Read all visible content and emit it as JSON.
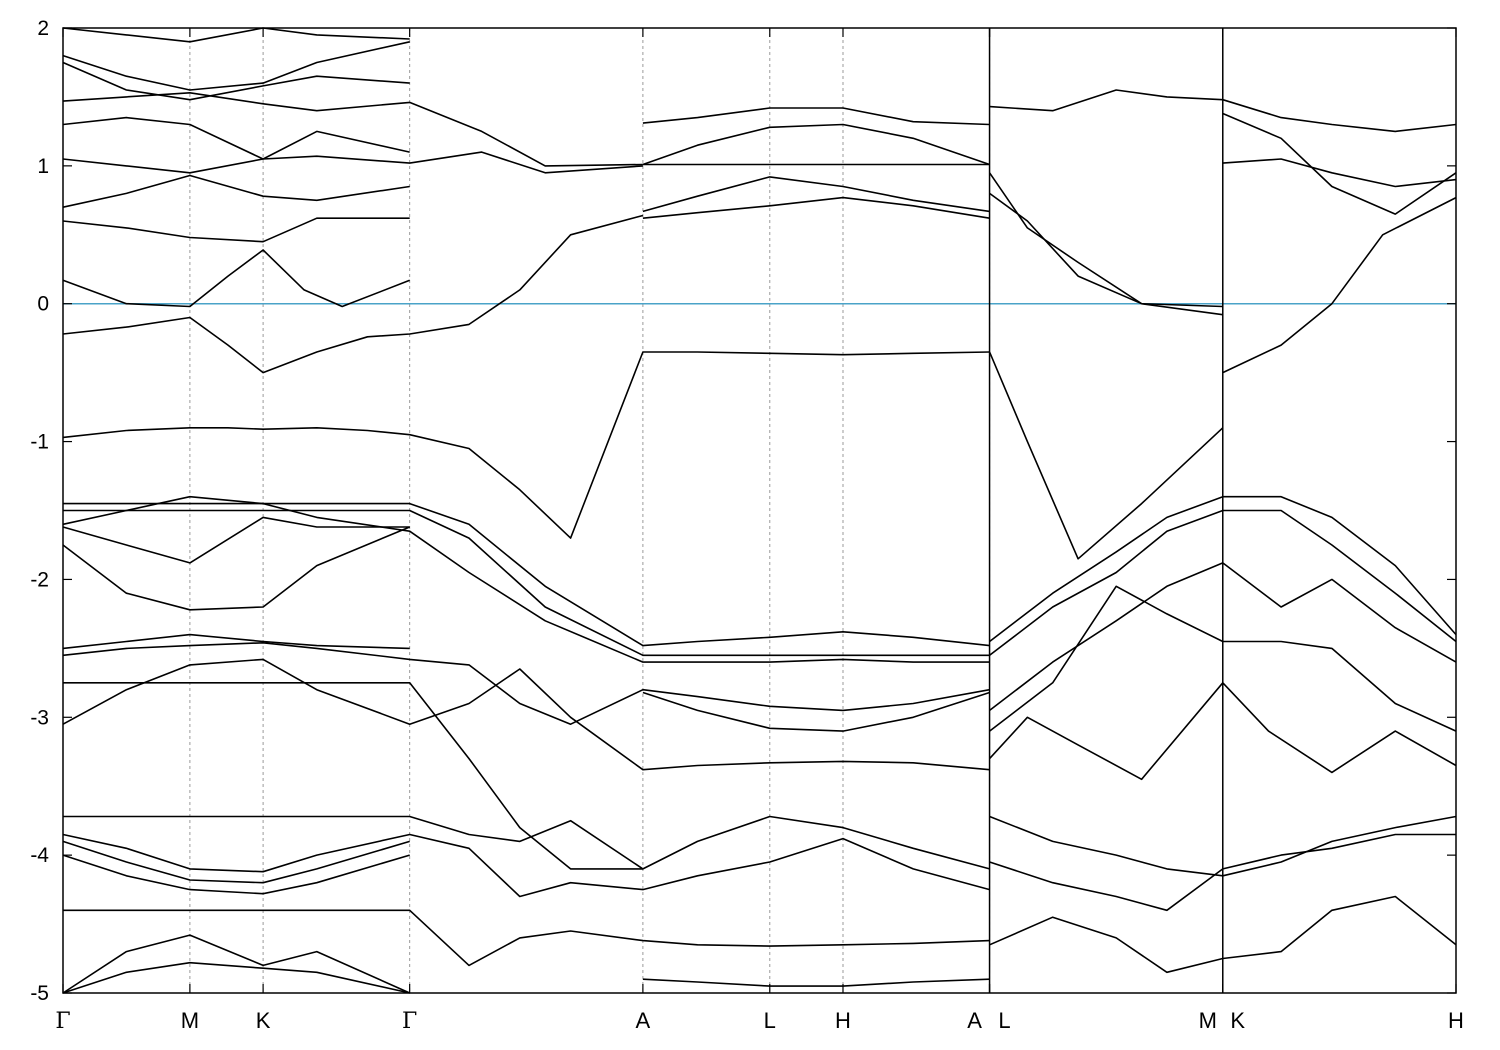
{
  "chart_data": {
    "type": "line",
    "title": "",
    "xlabel": "",
    "ylabel": "",
    "ylim": [
      -5,
      2
    ],
    "yticks": [
      -5,
      -4,
      -3,
      -2,
      -1,
      0,
      1,
      2
    ],
    "grid": "vertical dashed at high-symmetry points",
    "k_points": [
      {
        "label": "Γ",
        "x": 0.0
      },
      {
        "label": "M",
        "x": 1.0
      },
      {
        "label": "K",
        "x": 1.577
      },
      {
        "label": "Γ",
        "x": 2.732
      },
      {
        "label": "A",
        "x": 4.57
      },
      {
        "label": "L",
        "x": 5.57
      },
      {
        "label": "H",
        "x": 6.147
      },
      {
        "label": "A",
        "x": 7.302
      },
      {
        "label": "L",
        "x": 7.302
      },
      {
        "label": "M",
        "x": 9.14
      },
      {
        "label": "K",
        "x": 9.14
      },
      {
        "label": "H",
        "x": 10.978
      }
    ],
    "path_breaks": [
      7.302,
      9.14
    ],
    "fermi_level": {
      "y": 0,
      "color": "#4aa3c8"
    },
    "series": [
      {
        "x": [
          0,
          0.5,
          1.0,
          1.3,
          1.577,
          2.0,
          2.4,
          2.732,
          3.2,
          3.6,
          4.0,
          4.57,
          5.0,
          5.57,
          6.147,
          6.7,
          7.302
        ],
        "values": [
          -0.97,
          -0.92,
          -0.9,
          -0.9,
          -0.91,
          -0.9,
          -0.92,
          -0.95,
          -1.05,
          -1.35,
          -1.7,
          -0.35,
          -0.35,
          -0.36,
          -0.37,
          -0.36,
          -0.35
        ]
      },
      {
        "x": [
          7.302,
          7.6,
          8.0,
          8.5,
          9.14
        ],
        "values": [
          -0.35,
          -1.0,
          -1.85,
          -1.45,
          -0.9
        ]
      },
      {
        "x": [
          9.14,
          9.6,
          10.0,
          10.4,
          10.978
        ],
        "values": [
          -0.5,
          -0.3,
          0.0,
          0.5,
          0.77
        ]
      },
      {
        "x": [
          0,
          0.5,
          1.0,
          1.3,
          1.577,
          2.0,
          2.4,
          2.732,
          3.2,
          3.6,
          4.0,
          4.57
        ],
        "values": [
          -0.22,
          -0.17,
          -0.1,
          -0.3,
          -0.5,
          -0.35,
          -0.24,
          -0.22,
          -0.15,
          0.1,
          0.5,
          0.64
        ]
      },
      {
        "x": [
          0,
          0.5,
          1.0,
          1.3,
          1.577,
          1.9,
          2.2,
          2.732
        ],
        "values": [
          0.17,
          0.0,
          -0.02,
          0.2,
          0.39,
          0.1,
          -0.02,
          0.17
        ]
      },
      {
        "x": [
          4.57,
          5.0,
          5.57,
          6.147,
          6.7,
          7.302
        ],
        "values": [
          0.62,
          0.66,
          0.71,
          0.77,
          0.71,
          0.62
        ]
      },
      {
        "x": [
          4.57,
          5.0,
          5.57,
          6.147,
          6.7,
          7.302
        ],
        "values": [
          0.67,
          0.78,
          0.92,
          0.85,
          0.75,
          0.67
        ]
      },
      {
        "x": [
          7.302,
          7.6,
          8.0,
          8.5,
          9.14
        ],
        "values": [
          0.95,
          0.55,
          0.3,
          0.0,
          -0.08
        ]
      },
      {
        "x": [
          7.302,
          7.6,
          8.0,
          8.5,
          9.14
        ],
        "values": [
          0.8,
          0.6,
          0.2,
          0.0,
          -0.02
        ]
      },
      {
        "x": [
          0,
          0.5,
          1.0,
          1.577,
          2.0,
          2.732,
          3.3,
          3.8,
          4.57
        ],
        "values": [
          1.47,
          1.5,
          1.53,
          1.45,
          1.4,
          1.46,
          1.25,
          1.0,
          1.01
        ]
      },
      {
        "x": [
          0,
          0.5,
          1.0,
          1.577,
          2.0,
          2.732,
          3.3,
          3.8,
          4.57
        ],
        "values": [
          1.05,
          1.0,
          0.95,
          1.05,
          1.07,
          1.02,
          1.1,
          0.95,
          1.0
        ]
      },
      {
        "x": [
          4.57,
          5.0,
          5.57,
          6.147,
          6.7,
          7.302
        ],
        "values": [
          1.01,
          1.01,
          1.01,
          1.01,
          1.01,
          1.01
        ]
      },
      {
        "x": [
          4.57,
          5.0,
          5.57,
          6.147,
          6.7,
          7.302
        ],
        "values": [
          1.31,
          1.35,
          1.42,
          1.42,
          1.32,
          1.3
        ]
      },
      {
        "x": [
          4.57,
          5.0,
          5.57,
          6.147,
          6.7,
          7.302
        ],
        "values": [
          1.01,
          1.15,
          1.28,
          1.3,
          1.2,
          1.01
        ]
      },
      {
        "x": [
          0,
          0.5,
          1.0,
          1.577,
          2.0,
          2.732
        ],
        "values": [
          0.6,
          0.55,
          0.48,
          0.45,
          0.62,
          0.62
        ]
      },
      {
        "x": [
          0,
          0.5,
          1.0,
          1.577,
          2.0,
          2.732
        ],
        "values": [
          0.7,
          0.8,
          0.93,
          0.78,
          0.75,
          0.85
        ]
      },
      {
        "x": [
          7.302,
          7.8,
          8.3,
          8.7,
          9.14,
          9.6,
          10.0,
          10.5,
          10.978
        ],
        "values": [
          1.43,
          1.4,
          1.55,
          1.5,
          1.48,
          1.35,
          1.3,
          1.25,
          1.3
        ]
      },
      {
        "x": [
          9.14,
          9.6,
          10.0,
          10.5,
          10.978
        ],
        "values": [
          1.38,
          1.2,
          0.85,
          0.65,
          0.95
        ]
      },
      {
        "x": [
          9.14,
          9.6,
          10.0,
          10.5,
          10.978
        ],
        "values": [
          1.02,
          1.05,
          0.95,
          0.85,
          0.9
        ]
      },
      {
        "x": [
          0,
          0.5,
          1.0,
          1.577,
          2.0,
          2.732,
          3.2,
          3.8,
          4.57,
          5.0,
          5.57,
          6.147,
          6.7,
          7.302
        ],
        "values": [
          -1.45,
          -1.45,
          -1.45,
          -1.45,
          -1.45,
          -1.45,
          -1.6,
          -2.05,
          -2.48,
          -2.45,
          -2.42,
          -2.38,
          -2.42,
          -2.48
        ]
      },
      {
        "x": [
          0,
          0.5,
          1.0,
          1.577,
          2.0,
          2.732,
          3.2,
          3.8,
          4.57,
          5.0,
          5.57,
          6.147,
          6.7,
          7.302
        ],
        "values": [
          -1.5,
          -1.5,
          -1.5,
          -1.5,
          -1.5,
          -1.5,
          -1.7,
          -2.2,
          -2.55,
          -2.55,
          -2.55,
          -2.55,
          -2.55,
          -2.55
        ]
      },
      {
        "x": [
          0,
          0.5,
          1.0,
          1.577,
          2.0,
          2.732,
          3.2,
          3.8,
          4.57,
          5.0,
          5.57,
          6.147,
          6.7,
          7.302
        ],
        "values": [
          -1.6,
          -1.5,
          -1.4,
          -1.45,
          -1.55,
          -1.65,
          -1.95,
          -2.3,
          -2.6,
          -2.6,
          -2.6,
          -2.58,
          -2.6,
          -2.6
        ]
      },
      {
        "x": [
          0,
          0.5,
          1.0,
          1.577,
          2.0,
          2.732
        ],
        "values": [
          -1.62,
          -1.75,
          -1.88,
          -1.55,
          -1.62,
          -1.62
        ]
      },
      {
        "x": [
          0,
          0.5,
          1.0,
          1.577,
          2.0,
          2.732
        ],
        "values": [
          -1.75,
          -2.1,
          -2.22,
          -2.2,
          -1.9,
          -1.62
        ]
      },
      {
        "x": [
          0,
          0.5,
          1.0,
          1.577,
          2.0,
          2.732
        ],
        "values": [
          -2.5,
          -2.45,
          -2.4,
          -2.45,
          -2.48,
          -2.5
        ]
      },
      {
        "x": [
          0,
          0.5,
          1.0,
          1.577,
          2.0,
          2.732,
          3.2,
          3.6,
          4.0,
          4.57,
          5.0,
          5.57,
          6.147,
          6.7,
          7.302
        ],
        "values": [
          -2.55,
          -2.5,
          -2.48,
          -2.46,
          -2.5,
          -2.58,
          -2.62,
          -2.9,
          -3.05,
          -2.8,
          -2.85,
          -2.92,
          -2.95,
          -2.9,
          -2.8
        ]
      },
      {
        "x": [
          4.57,
          5.0,
          5.57,
          6.147,
          6.7,
          7.302
        ],
        "values": [
          -2.82,
          -2.95,
          -3.08,
          -3.1,
          -3.0,
          -2.82
        ]
      },
      {
        "x": [
          0,
          0.5,
          1.0,
          1.577,
          2.0,
          2.732,
          3.2,
          3.6,
          4.0,
          4.57
        ],
        "values": [
          -2.75,
          -2.75,
          -2.75,
          -2.75,
          -2.75,
          -2.75,
          -3.3,
          -3.8,
          -4.1,
          -4.1
        ]
      },
      {
        "x": [
          0,
          0.5,
          1.0,
          1.577,
          2.0,
          2.732,
          3.2,
          3.6,
          4.0,
          4.57,
          5.0,
          5.57,
          6.147,
          6.7,
          7.302
        ],
        "values": [
          -3.05,
          -2.8,
          -2.62,
          -2.58,
          -2.8,
          -3.05,
          -2.9,
          -2.65,
          -3.0,
          -3.38,
          -3.35,
          -3.33,
          -3.32,
          -3.33,
          -3.38
        ]
      },
      {
        "x": [
          7.302,
          7.8,
          8.3,
          8.7,
          9.14,
          9.6,
          10.0,
          10.5,
          10.978
        ],
        "values": [
          -2.45,
          -2.1,
          -1.8,
          -1.55,
          -1.4,
          -1.4,
          -1.55,
          -1.9,
          -2.4
        ]
      },
      {
        "x": [
          7.302,
          7.8,
          8.3,
          8.7,
          9.14,
          9.6,
          10.0,
          10.5,
          10.978
        ],
        "values": [
          -2.55,
          -2.2,
          -1.95,
          -1.65,
          -1.5,
          -1.5,
          -1.75,
          -2.1,
          -2.45
        ]
      },
      {
        "x": [
          7.302,
          7.8,
          8.3,
          8.7,
          9.14,
          9.6,
          10.0,
          10.5,
          10.978
        ],
        "values": [
          -2.95,
          -2.6,
          -2.3,
          -2.05,
          -1.88,
          -2.2,
          -2.0,
          -2.35,
          -2.6
        ]
      },
      {
        "x": [
          7.302,
          7.8,
          8.3,
          8.7,
          9.14,
          9.6,
          10.0,
          10.5,
          10.978
        ],
        "values": [
          -3.1,
          -2.75,
          -2.05,
          -2.25,
          -2.45,
          -2.45,
          -2.5,
          -2.9,
          -3.1
        ]
      },
      {
        "x": [
          7.302,
          7.6,
          8.0,
          8.5,
          9.14,
          9.5,
          10.0,
          10.5,
          10.978
        ],
        "values": [
          -3.3,
          -3.0,
          -3.2,
          -3.45,
          -2.75,
          -3.1,
          -3.4,
          -3.1,
          -3.35
        ]
      },
      {
        "x": [
          0,
          0.5,
          1.0,
          1.577,
          2.0,
          2.732,
          3.2,
          3.6,
          4.0,
          4.57,
          5.0,
          5.57,
          6.147,
          6.7,
          7.302
        ],
        "values": [
          -3.72,
          -3.72,
          -3.72,
          -3.72,
          -3.72,
          -3.72,
          -3.85,
          -3.9,
          -3.75,
          -4.1,
          -3.9,
          -3.72,
          -3.8,
          -3.95,
          -4.1
        ]
      },
      {
        "x": [
          0,
          0.5,
          1.0,
          1.577,
          2.0,
          2.732,
          3.2,
          3.6,
          4.0,
          4.57,
          5.0,
          5.57,
          6.147,
          6.7,
          7.302
        ],
        "values": [
          -3.85,
          -3.95,
          -4.1,
          -4.12,
          -4.0,
          -3.85,
          -3.95,
          -4.3,
          -4.2,
          -4.25,
          -4.15,
          -4.05,
          -3.88,
          -4.1,
          -4.25
        ]
      },
      {
        "x": [
          0,
          0.5,
          1.0,
          1.577,
          2.0,
          2.732
        ],
        "values": [
          -3.9,
          -4.05,
          -4.18,
          -4.2,
          -4.1,
          -3.9
        ]
      },
      {
        "x": [
          0,
          0.5,
          1.0,
          1.577,
          2.0,
          2.732
        ],
        "values": [
          -4.0,
          -4.15,
          -4.25,
          -4.28,
          -4.2,
          -4.0
        ]
      },
      {
        "x": [
          0,
          0.5,
          1.0,
          1.577,
          2.0,
          2.732,
          3.2,
          3.6,
          4.0,
          4.57,
          5.0,
          5.57,
          6.147,
          6.7,
          7.302
        ],
        "values": [
          -4.4,
          -4.4,
          -4.4,
          -4.4,
          -4.4,
          -4.4,
          -4.8,
          -4.6,
          -4.55,
          -4.62,
          -4.65,
          -4.66,
          -4.65,
          -4.64,
          -4.62
        ]
      },
      {
        "x": [
          7.302,
          7.8,
          8.3,
          8.7,
          9.14,
          9.6,
          10.0,
          10.5,
          10.978
        ],
        "values": [
          -3.72,
          -3.9,
          -4.0,
          -4.1,
          -4.15,
          -4.05,
          -3.9,
          -3.8,
          -3.72
        ]
      },
      {
        "x": [
          7.302,
          7.8,
          8.3,
          8.7,
          9.14,
          9.6,
          10.0,
          10.5,
          10.978
        ],
        "values": [
          -4.05,
          -4.2,
          -4.3,
          -4.4,
          -4.1,
          -4.0,
          -3.95,
          -3.85,
          -3.85
        ]
      },
      {
        "x": [
          7.302,
          7.8,
          8.3,
          8.7,
          9.14,
          9.6,
          10.0,
          10.5,
          10.978
        ],
        "values": [
          -4.65,
          -4.45,
          -4.6,
          -4.85,
          -4.75,
          -4.7,
          -4.4,
          -4.3,
          -4.65
        ]
      },
      {
        "x": [
          0,
          0.5,
          1.0,
          1.577,
          2.0,
          2.732
        ],
        "values": [
          -5.0,
          -4.7,
          -4.58,
          -4.8,
          -4.7,
          -5.0
        ]
      },
      {
        "x": [
          0,
          0.5,
          1.0,
          1.577,
          2.0,
          2.732
        ],
        "values": [
          -5.0,
          -4.85,
          -4.78,
          -4.82,
          -4.85,
          -5.0
        ]
      },
      {
        "x": [
          4.57,
          5.0,
          5.57,
          6.147,
          6.7,
          7.302
        ],
        "values": [
          -4.9,
          -4.92,
          -4.95,
          -4.95,
          -4.92,
          -4.9
        ]
      },
      {
        "x": [
          0,
          0.5,
          1.0,
          1.577,
          2.0,
          2.732
        ],
        "values": [
          2.0,
          1.95,
          1.9,
          2.0,
          1.95,
          1.92
        ]
      },
      {
        "x": [
          0,
          0.5,
          1.0,
          1.577,
          2.0,
          2.732
        ],
        "values": [
          1.8,
          1.65,
          1.55,
          1.6,
          1.75,
          1.9
        ]
      },
      {
        "x": [
          0,
          0.5,
          1.0,
          1.577,
          2.0,
          2.732
        ],
        "values": [
          1.75,
          1.55,
          1.48,
          1.58,
          1.65,
          1.6
        ]
      },
      {
        "x": [
          0,
          0.5,
          1.0,
          1.577,
          2.0,
          2.732
        ],
        "values": [
          1.3,
          1.35,
          1.3,
          1.05,
          1.25,
          1.1
        ]
      }
    ]
  }
}
